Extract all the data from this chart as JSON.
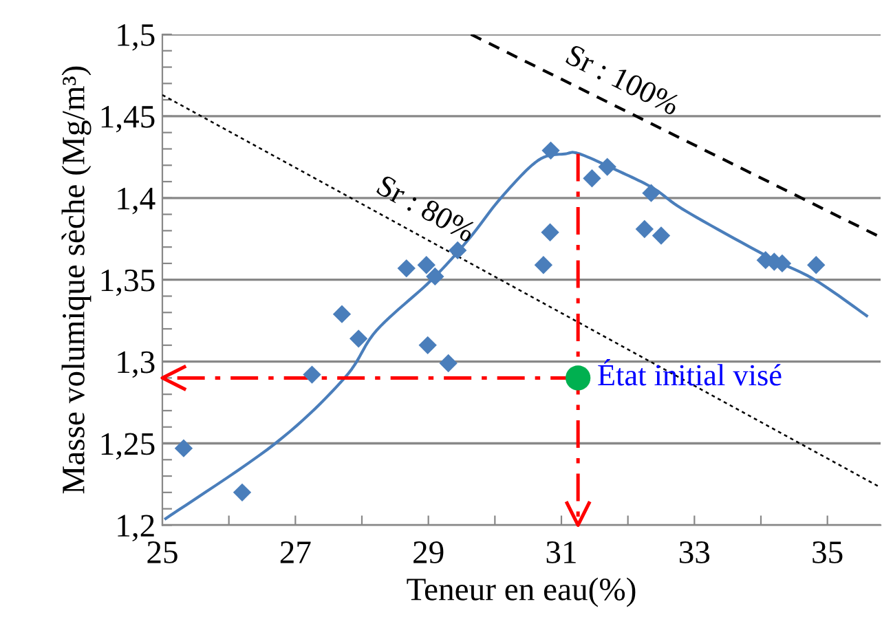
{
  "chart_data": {
    "type": "scatter",
    "xlabel": "Teneur en eau(%)",
    "ylabel": "Masse volumique sèche (Mg/m³)",
    "xlim": [
      25,
      35.8
    ],
    "ylim": [
      1.2,
      1.5
    ],
    "xticks": [
      25,
      {
        "value": 26,
        "label": null
      },
      27,
      {
        "value": 28,
        "label": null
      },
      29,
      {
        "value": 30,
        "label": null
      },
      31,
      {
        "value": 32,
        "label": null
      },
      33,
      {
        "value": 34,
        "label": null
      },
      35
    ],
    "yticks": [
      {
        "value": 1.2,
        "label": "1,2"
      },
      {
        "value": 1.21,
        "label": null
      },
      {
        "value": 1.22,
        "label": null
      },
      {
        "value": 1.23,
        "label": null
      },
      {
        "value": 1.24,
        "label": null
      },
      {
        "value": 1.25,
        "label": "1,25"
      },
      {
        "value": 1.26,
        "label": null
      },
      {
        "value": 1.27,
        "label": null
      },
      {
        "value": 1.28,
        "label": null
      },
      {
        "value": 1.29,
        "label": null
      },
      {
        "value": 1.3,
        "label": "1,3"
      },
      {
        "value": 1.31,
        "label": null
      },
      {
        "value": 1.32,
        "label": null
      },
      {
        "value": 1.33,
        "label": null
      },
      {
        "value": 1.34,
        "label": null
      },
      {
        "value": 1.35,
        "label": "1,35"
      },
      {
        "value": 1.36,
        "label": null
      },
      {
        "value": 1.37,
        "label": null
      },
      {
        "value": 1.38,
        "label": null
      },
      {
        "value": 1.39,
        "label": null
      },
      {
        "value": 1.4,
        "label": "1,4"
      },
      {
        "value": 1.41,
        "label": null
      },
      {
        "value": 1.42,
        "label": null
      },
      {
        "value": 1.43,
        "label": null
      },
      {
        "value": 1.44,
        "label": null
      },
      {
        "value": 1.45,
        "label": "1,45"
      },
      {
        "value": 1.46,
        "label": null
      },
      {
        "value": 1.47,
        "label": null
      },
      {
        "value": 1.48,
        "label": null
      },
      {
        "value": 1.49,
        "label": null
      },
      {
        "value": 1.5,
        "label": "1,5"
      }
    ],
    "grid": "y",
    "legend": false,
    "series": [
      {
        "type": "scatter",
        "marker": "diamond",
        "color": "#4a7ebb",
        "x": [
          25.32,
          26.2,
          27.25,
          27.7,
          27.95,
          28.67,
          28.97,
          28.99,
          29.1,
          29.3,
          29.44,
          30.84,
          30.83,
          30.73,
          31.46,
          31.69,
          32.35,
          32.25,
          32.5,
          34.07,
          34.2,
          34.32,
          34.83
        ],
        "values": [
          1.247,
          1.22,
          1.292,
          1.329,
          1.314,
          1.357,
          1.359,
          1.31,
          1.352,
          1.299,
          1.368,
          1.429,
          1.379,
          1.359,
          1.412,
          1.419,
          1.403,
          1.381,
          1.377,
          1.362,
          1.361,
          1.36,
          1.359
        ]
      },
      {
        "type": "line",
        "marker": "none",
        "line_style": "solid",
        "color": "#4a7ebb",
        "x": [
          25.05,
          26.7,
          27.74,
          28.22,
          29.05,
          29.61,
          30.09,
          30.65,
          31.06,
          31.27,
          31.83,
          32.38,
          32.87,
          34.11,
          34.81,
          35.59
        ],
        "values": [
          1.204,
          1.25,
          1.29,
          1.319,
          1.35,
          1.375,
          1.4,
          1.423,
          1.427,
          1.427,
          1.417,
          1.406,
          1.392,
          1.364,
          1.35,
          1.328
        ]
      },
      {
        "type": "line",
        "name": "Sr : 80%",
        "marker": "none",
        "line_style": "dotted",
        "color": "#000000",
        "x": [
          25.0,
          35.8
        ],
        "values": [
          1.463,
          1.223
        ]
      },
      {
        "type": "line",
        "name": "Sr : 100%",
        "marker": "none",
        "line_style": "dashed",
        "color": "#000000",
        "x": [
          29.64,
          35.8
        ],
        "values": [
          1.5,
          1.376
        ]
      },
      {
        "type": "line",
        "marker": "none",
        "line_style": "dashdot",
        "color": "#ff0000",
        "x": [
          31.25,
          25.0
        ],
        "values": [
          1.29,
          1.29
        ]
      },
      {
        "type": "line",
        "marker": "none",
        "line_style": "dashdot",
        "color": "#ff0000",
        "x": [
          31.25,
          31.25
        ],
        "values": [
          1.427,
          1.2
        ]
      },
      {
        "type": "scatter",
        "name": "État initial visé",
        "marker": "circle",
        "color": "#00b050",
        "x": [
          31.25
        ],
        "values": [
          1.29
        ]
      }
    ]
  }
}
